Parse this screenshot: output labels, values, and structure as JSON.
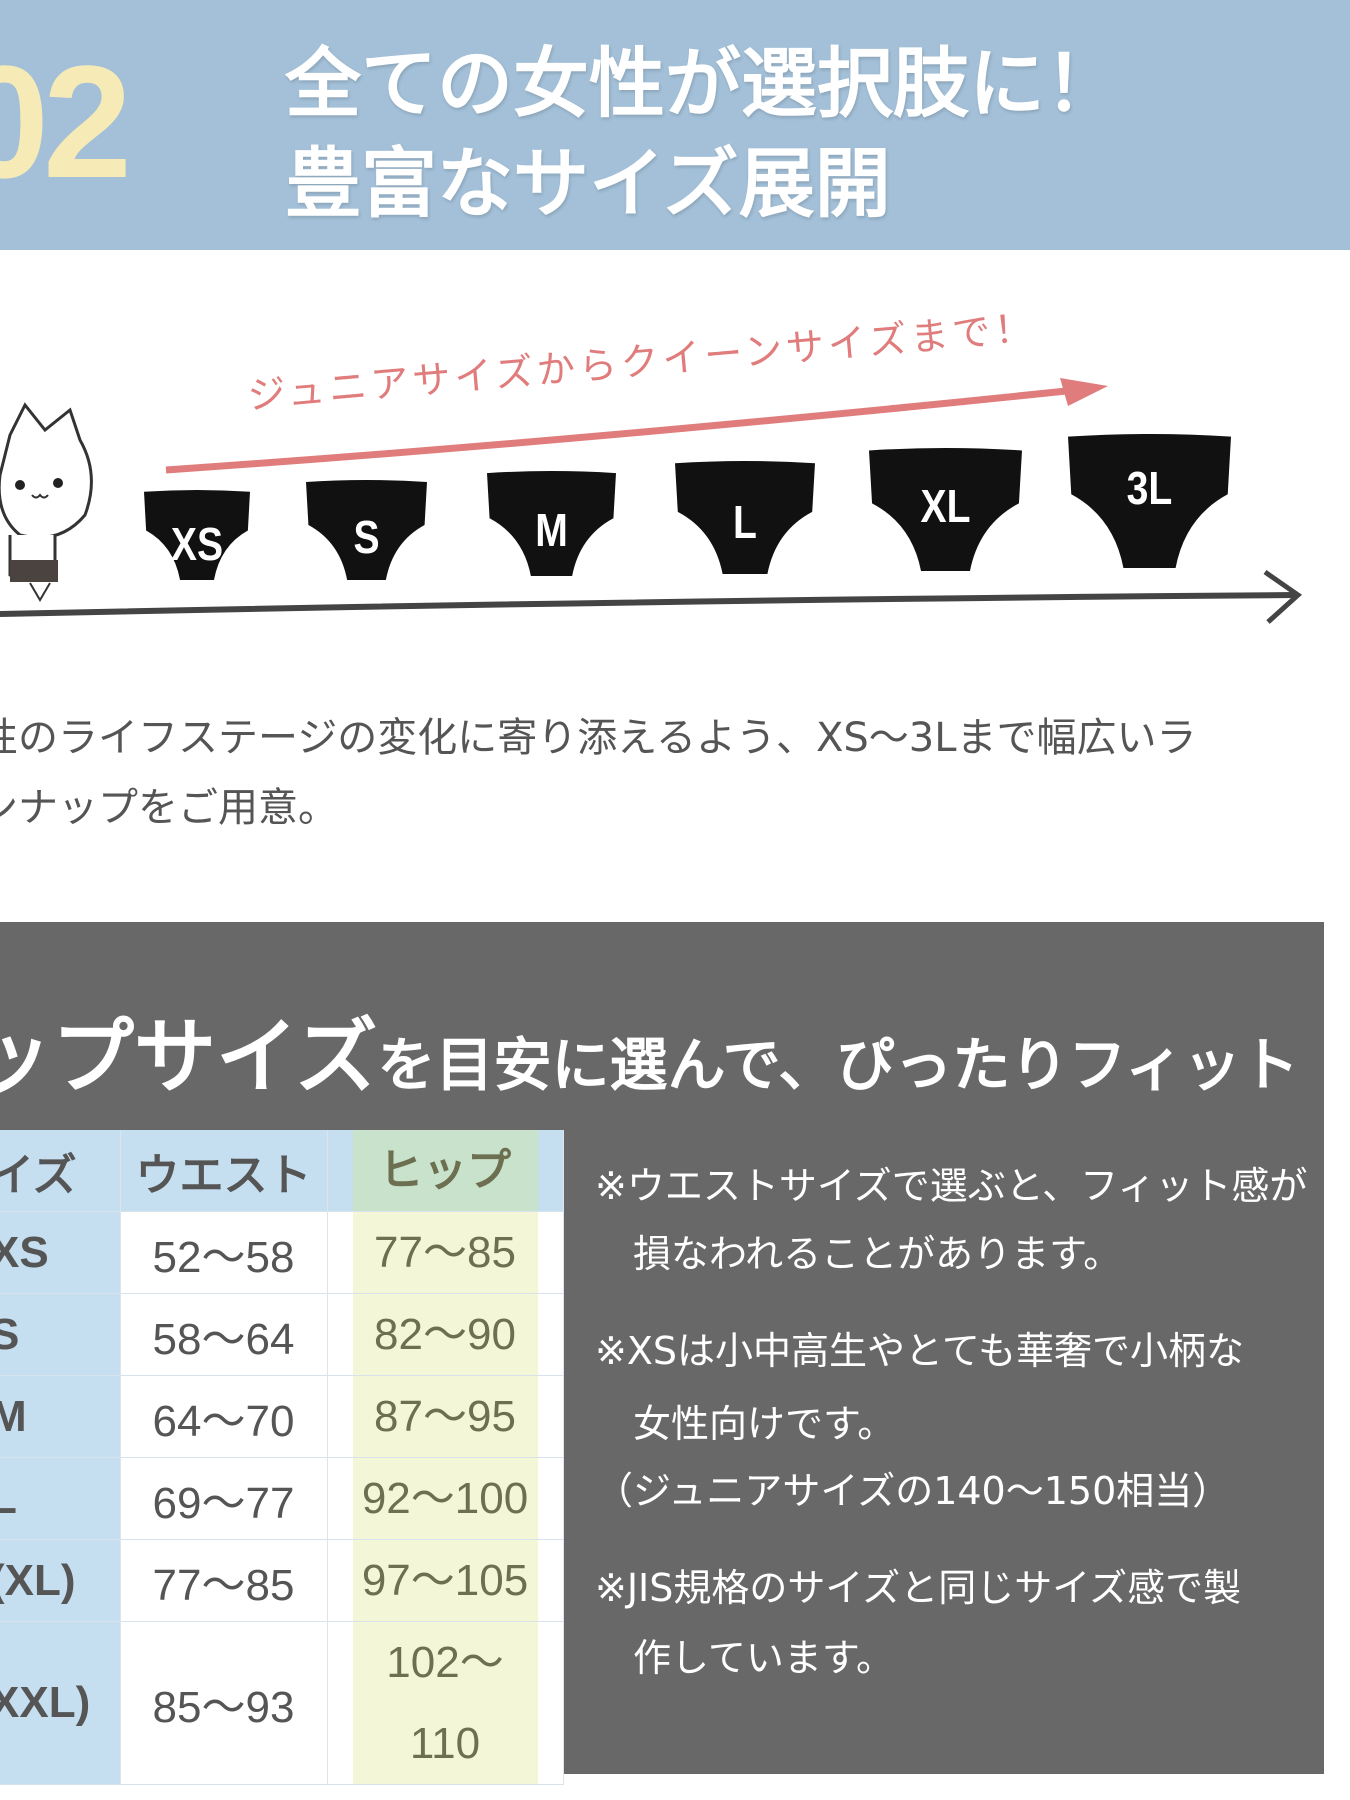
{
  "header": {
    "number": "02",
    "title_line1": "全ての女性が選択肢に！",
    "title_line2": "豊富なサイズ展開"
  },
  "illustration": {
    "arrow_text": "ジュニアサイズからクイーンサイズまで！",
    "sizes": [
      "XS",
      "S",
      "M",
      "L",
      "XL",
      "3L"
    ]
  },
  "description": {
    "line1": "性のライフステージの変化に寄り添えるよう、XS〜3Lまで幅広いラ",
    "line2": "ンナップをご用意。"
  },
  "panel": {
    "heading_big": "ップサイズ",
    "heading_rest": "を目安に選んで、ぴったりフィット",
    "table": {
      "headers": [
        "イズ",
        "ウエスト",
        "ヒップ"
      ],
      "rows": [
        [
          "XS",
          "52〜58",
          "77〜85"
        ],
        [
          "S",
          "58〜64",
          "82〜90"
        ],
        [
          "M",
          "64〜70",
          "87〜95"
        ],
        [
          "L",
          "69〜77",
          "92〜100"
        ],
        [
          "(XL)",
          "77〜85",
          "97〜105"
        ],
        [
          "XXL)",
          "85〜93",
          "102〜110"
        ]
      ]
    },
    "notes": [
      "※ウエストサイズで選ぶと、フィット感が",
      "　損なわれることがあります。",
      "※XSは小中高生やとても華奢で小柄な",
      "　女性向けです。",
      "（ジュニアサイズの140〜150相当）",
      "※JIS規格のサイズと同じサイズ感で製",
      "　作しています。"
    ]
  },
  "colors": {
    "header_bg": "#a3c0d8",
    "number": "#f6ebb6",
    "accent_pink": "#e07c7c",
    "panel_bg": "#686868"
  }
}
